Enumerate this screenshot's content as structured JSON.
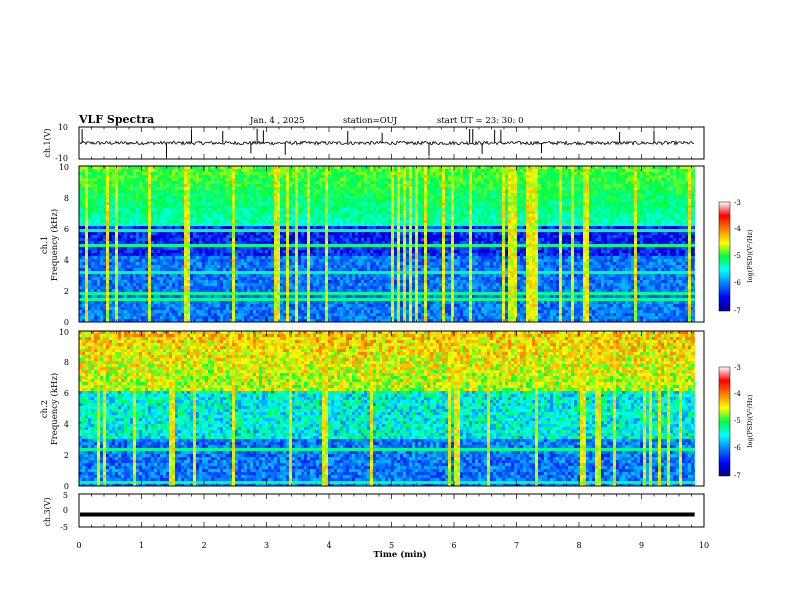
{
  "header": {
    "title": "VLF Spectra",
    "date": "Jan. 4 , 2025",
    "station": "station=OUJ",
    "start": "start UT = 23: 30: 0"
  },
  "chart_data": [
    {
      "type": "line",
      "name": "ch1-waveform",
      "ylabel": "ch.1(V)",
      "ylim": [
        -10,
        10
      ],
      "yticks": [
        "10",
        "-10"
      ],
      "x_range_min": [
        0,
        9.85
      ],
      "baseline": 0,
      "spikes_x": [
        0.05,
        1.4,
        1.8,
        2.3,
        2.75,
        2.85,
        2.95,
        3.3,
        4.3,
        4.85,
        5.6,
        6.25,
        6.3,
        6.45,
        6.65,
        6.75,
        7.4,
        8.65,
        9.2
      ]
    },
    {
      "type": "heatmap",
      "name": "ch1-spectrogram",
      "ylabel_lines": [
        "ch.1",
        "Frequency (kHz)"
      ],
      "ylim": [
        0,
        10
      ],
      "yticks": [
        "0",
        "2",
        "4",
        "6",
        "8",
        "10"
      ],
      "x_range_min": [
        0,
        9.85
      ],
      "colorbar": {
        "label": "log(PSD)(V²/Hz)",
        "range": [
          -7,
          -3
        ],
        "ticks": [
          "-3",
          "-4",
          "-5",
          "-6",
          "-7"
        ]
      }
    },
    {
      "type": "heatmap",
      "name": "ch2-spectrogram",
      "ylabel_lines": [
        "ch.2",
        "Frequency (kHz)"
      ],
      "ylim": [
        0,
        10
      ],
      "yticks": [
        "0",
        "2",
        "4",
        "6",
        "8",
        "10"
      ],
      "x_range_min": [
        0,
        9.85
      ],
      "colorbar": {
        "label": "log(PSD)(V²/Hz)",
        "range": [
          -7,
          -3
        ],
        "ticks": [
          "-3",
          "-4",
          "-5",
          "-6",
          "-7"
        ]
      }
    },
    {
      "type": "line",
      "name": "ch3-waveform",
      "ylabel": "ch.3(V)",
      "ylim": [
        -5,
        5
      ],
      "yticks": [
        "5",
        "0",
        "-5"
      ],
      "x_range_min": [
        0,
        9.85
      ],
      "level": -1.2
    }
  ],
  "xaxis": {
    "label": "Time (min)",
    "range": [
      0,
      10
    ],
    "ticks": [
      "0",
      "1",
      "2",
      "3",
      "4",
      "5",
      "6",
      "7",
      "8",
      "9",
      "10"
    ]
  },
  "colors": {
    "colormap": [
      "#000080",
      "#0000ff",
      "#0080ff",
      "#00ffff",
      "#00ff40",
      "#ffff00",
      "#ff8000",
      "#ff0000",
      "#ffffff"
    ]
  }
}
